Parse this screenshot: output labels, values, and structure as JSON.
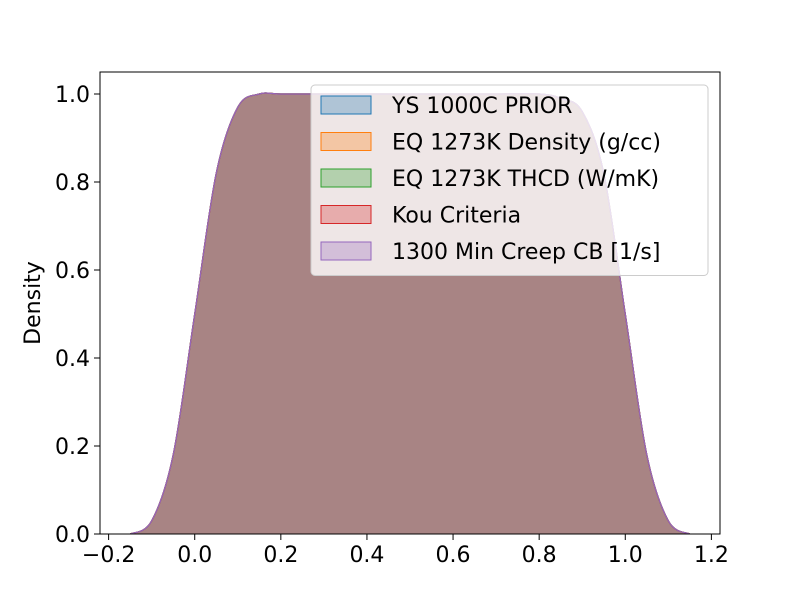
{
  "chart_data": {
    "type": "area",
    "title": "",
    "xlabel": "",
    "ylabel": "Density",
    "xlim": [
      -0.22,
      1.22
    ],
    "ylim": [
      0.0,
      1.05
    ],
    "xticks": [
      -0.2,
      0.0,
      0.2,
      0.4,
      0.6,
      0.8,
      1.0,
      1.2
    ],
    "xtick_labels": [
      "−0.2",
      "0.0",
      "0.2",
      "0.4",
      "0.6",
      "0.8",
      "1.0",
      "1.2"
    ],
    "yticks": [
      0.0,
      0.2,
      0.4,
      0.6,
      0.8,
      1.0
    ],
    "ytick_labels": [
      "0.0",
      "0.2",
      "0.4",
      "0.6",
      "0.8",
      "1.0"
    ],
    "grid": false,
    "legend_position": "top-right",
    "x": [
      -0.15,
      -0.1,
      -0.05,
      0.0,
      0.05,
      0.1,
      0.15,
      0.2,
      0.3,
      0.4,
      0.5,
      0.6,
      0.7,
      0.8,
      0.85,
      0.9,
      0.95,
      1.0,
      1.05,
      1.1,
      1.15
    ],
    "series": [
      {
        "name": "YS 1000C PRIOR",
        "color": "#1f77b4",
        "values": [
          0.0,
          0.03,
          0.18,
          0.5,
          0.82,
          0.97,
          1.0,
          1.0,
          1.0,
          1.0,
          1.0,
          1.0,
          1.0,
          1.0,
          0.99,
          0.96,
          0.82,
          0.5,
          0.18,
          0.03,
          0.0
        ]
      },
      {
        "name": "EQ 1273K Density (g/cc)",
        "color": "#ff7f0e",
        "values": [
          0.0,
          0.03,
          0.18,
          0.5,
          0.82,
          0.97,
          1.0,
          1.0,
          1.0,
          1.0,
          1.0,
          1.0,
          1.0,
          1.0,
          0.99,
          0.96,
          0.82,
          0.5,
          0.18,
          0.03,
          0.0
        ]
      },
      {
        "name": "EQ 1273K THCD (W/mK)",
        "color": "#2ca02c",
        "values": [
          0.0,
          0.03,
          0.18,
          0.5,
          0.82,
          0.97,
          1.0,
          1.0,
          1.0,
          1.0,
          1.0,
          1.0,
          1.0,
          1.0,
          0.99,
          0.96,
          0.82,
          0.5,
          0.18,
          0.03,
          0.0
        ]
      },
      {
        "name": "Kou Criteria",
        "color": "#d62728",
        "values": [
          0.0,
          0.03,
          0.18,
          0.5,
          0.82,
          0.97,
          1.0,
          1.0,
          1.0,
          1.0,
          1.0,
          1.0,
          1.0,
          1.0,
          0.99,
          0.96,
          0.82,
          0.5,
          0.18,
          0.03,
          0.0
        ]
      },
      {
        "name": "1300 Min Creep CB [1/s]",
        "color": "#9467bd",
        "values": [
          0.0,
          0.03,
          0.18,
          0.5,
          0.82,
          0.97,
          1.0,
          1.0,
          1.0,
          1.0,
          1.0,
          1.0,
          1.0,
          1.0,
          0.99,
          0.96,
          0.82,
          0.5,
          0.18,
          0.03,
          0.0
        ]
      }
    ]
  }
}
